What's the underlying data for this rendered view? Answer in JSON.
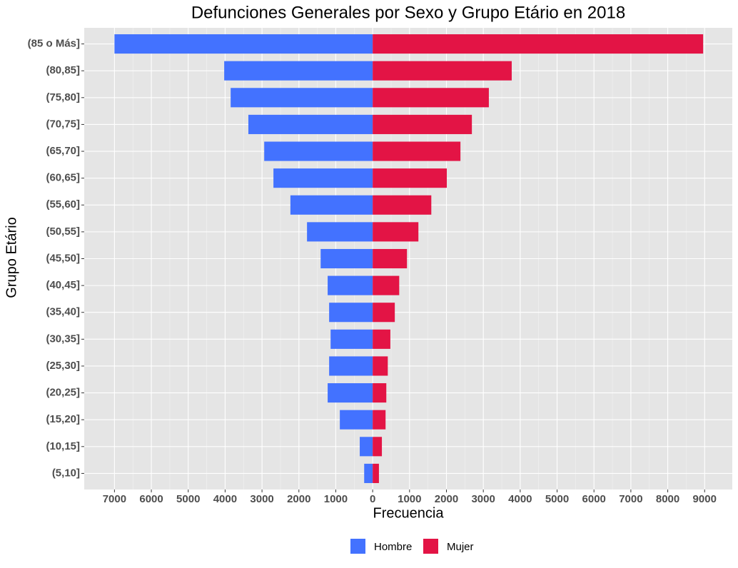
{
  "chart_data": {
    "type": "bar",
    "orientation": "horizontal",
    "stacking": "diverging",
    "title": "Defunciones Generales por Sexo y Grupo Etário en 2018",
    "x_label": "Frecuencia",
    "y_label": "Grupo Etário",
    "categories": [
      "(5,10]",
      "(10,15]",
      "(15,20]",
      "(20,25]",
      "(25,30]",
      "(30,35]",
      "(35,40]",
      "(40,45]",
      "(45,50]",
      "(50,55]",
      "(55,60]",
      "(60,65]",
      "(65,70]",
      "(70,75]",
      "(75,80]",
      "(80,85]",
      "(85 o Más]"
    ],
    "series": [
      {
        "name": "Hombre",
        "color": "#4372ff",
        "values": [
          -230,
          -350,
          -890,
          -1220,
          -1180,
          -1140,
          -1180,
          -1220,
          -1410,
          -1780,
          -2230,
          -2690,
          -2940,
          -3370,
          -3850,
          -4025,
          -7000
        ]
      },
      {
        "name": "Mujer",
        "color": "#e31445",
        "values": [
          170,
          250,
          350,
          370,
          410,
          480,
          600,
          720,
          930,
          1240,
          1590,
          2010,
          2380,
          2690,
          3150,
          3770,
          8960
        ]
      }
    ],
    "xlim": [
      -7820,
      9750
    ],
    "xticks": [
      {
        "value": -7000,
        "label": "7000"
      },
      {
        "value": -6000,
        "label": "6000"
      },
      {
        "value": -5000,
        "label": "5000"
      },
      {
        "value": -4000,
        "label": "4000"
      },
      {
        "value": -3000,
        "label": "3000"
      },
      {
        "value": -2000,
        "label": "2000"
      },
      {
        "value": -1000,
        "label": "1000"
      },
      0,
      1000,
      2000,
      3000,
      4000,
      5000,
      6000,
      7000,
      8000,
      9000
    ],
    "grid": true,
    "legend_position": "bottom"
  }
}
